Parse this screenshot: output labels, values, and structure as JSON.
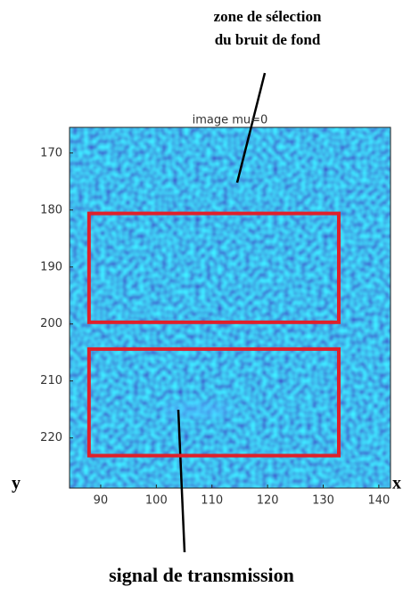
{
  "chart_data": {
    "type": "image",
    "title": "image mu=0",
    "xlim": [
      84.4,
      142.1
    ],
    "xticks": [
      90,
      100,
      110,
      120,
      130,
      140
    ],
    "ylim": [
      228.8,
      165.5
    ],
    "yticks": [
      170,
      180,
      190,
      200,
      210,
      220
    ],
    "x_label": "x",
    "y_label": "y",
    "annotations": [
      {
        "lines": [
          "zone de sélection",
          "du bruit de fond"
        ]
      },
      {
        "lines": [
          "signal de transmission"
        ]
      }
    ],
    "regions": [
      {
        "x": [
          87.9,
          132.8
        ],
        "y": [
          180.6,
          199.7
        ],
        "color": "#e0202a"
      },
      {
        "x": [
          87.9,
          132.8
        ],
        "y": [
          204.4,
          223.1
        ],
        "color": "#e0202a"
      }
    ]
  }
}
